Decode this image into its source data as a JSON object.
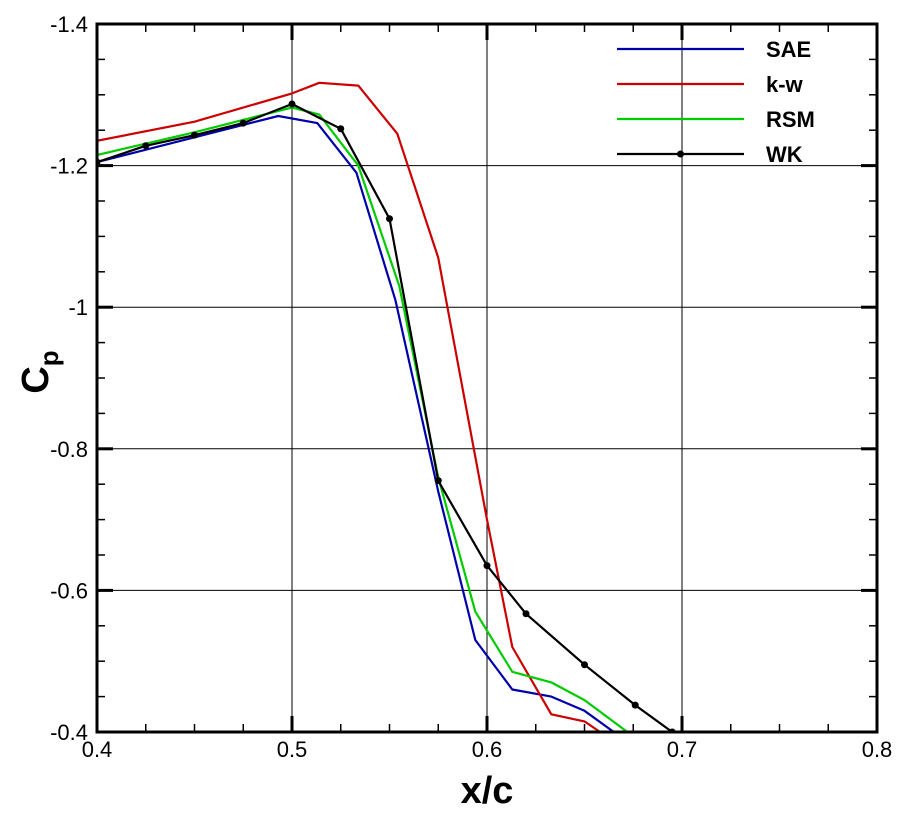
{
  "chart_data": {
    "type": "line",
    "xlabel": "x/c",
    "ylabel_base": "C",
    "ylabel_sub": "p",
    "xlim": [
      0.4,
      0.8
    ],
    "ylim": [
      -1.4,
      -0.4
    ],
    "y_inverted": true,
    "grid": true,
    "legend_position": "top-right",
    "x_ticks": [
      {
        "value": 0.4,
        "label": "0.4"
      },
      {
        "value": 0.5,
        "label": "0.5"
      },
      {
        "value": 0.6,
        "label": "0.6"
      },
      {
        "value": 0.7,
        "label": "0.7"
      },
      {
        "value": 0.8,
        "label": "0.8"
      }
    ],
    "y_ticks": [
      {
        "value": -1.4,
        "label": "-1.4"
      },
      {
        "value": -1.2,
        "label": "-1.2"
      },
      {
        "value": -1.0,
        "label": "-1"
      },
      {
        "value": -0.8,
        "label": "-0.8"
      },
      {
        "value": -0.6,
        "label": "-0.6"
      },
      {
        "value": -0.4,
        "label": "-0.4"
      }
    ],
    "series": [
      {
        "name": "SAE",
        "color": "#0000aa",
        "markers": false,
        "points": [
          [
            0.4,
            -1.205
          ],
          [
            0.45,
            -1.24
          ],
          [
            0.493,
            -1.27
          ],
          [
            0.513,
            -1.26
          ],
          [
            0.533,
            -1.19
          ],
          [
            0.553,
            -1.01
          ],
          [
            0.575,
            -0.74
          ],
          [
            0.594,
            -0.53
          ],
          [
            0.613,
            -0.46
          ],
          [
            0.633,
            -0.45
          ],
          [
            0.65,
            -0.43
          ],
          [
            0.665,
            -0.4
          ]
        ]
      },
      {
        "name": "k-w",
        "color": "#cc0000",
        "markers": false,
        "points": [
          [
            0.4,
            -1.235
          ],
          [
            0.45,
            -1.262
          ],
          [
            0.5,
            -1.302
          ],
          [
            0.514,
            -1.317
          ],
          [
            0.534,
            -1.313
          ],
          [
            0.554,
            -1.245
          ],
          [
            0.575,
            -1.07
          ],
          [
            0.6,
            -0.7
          ],
          [
            0.613,
            -0.52
          ],
          [
            0.633,
            -0.425
          ],
          [
            0.65,
            -0.415
          ],
          [
            0.658,
            -0.4
          ]
        ]
      },
      {
        "name": "RSM",
        "color": "#00cc00",
        "markers": false,
        "points": [
          [
            0.4,
            -1.215
          ],
          [
            0.45,
            -1.247
          ],
          [
            0.5,
            -1.282
          ],
          [
            0.514,
            -1.272
          ],
          [
            0.534,
            -1.2
          ],
          [
            0.555,
            -1.03
          ],
          [
            0.575,
            -0.76
          ],
          [
            0.594,
            -0.57
          ],
          [
            0.613,
            -0.485
          ],
          [
            0.633,
            -0.47
          ],
          [
            0.65,
            -0.445
          ],
          [
            0.672,
            -0.4
          ]
        ]
      },
      {
        "name": "WK",
        "color": "#000000",
        "markers": true,
        "points": [
          [
            0.4,
            -1.205
          ],
          [
            0.425,
            -1.228
          ],
          [
            0.45,
            -1.243
          ],
          [
            0.475,
            -1.26
          ],
          [
            0.5,
            -1.287
          ],
          [
            0.525,
            -1.252
          ],
          [
            0.55,
            -1.125
          ],
          [
            0.575,
            -0.755
          ],
          [
            0.6,
            -0.635
          ],
          [
            0.62,
            -0.567
          ],
          [
            0.65,
            -0.495
          ],
          [
            0.676,
            -0.438
          ],
          [
            0.695,
            -0.4
          ]
        ]
      }
    ]
  }
}
